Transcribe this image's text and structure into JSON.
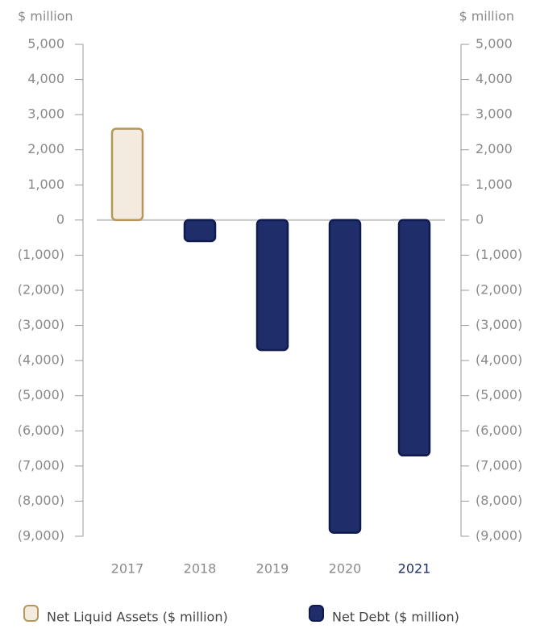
{
  "chart_data": {
    "type": "bar",
    "ylabel": "$ million",
    "y2label": "$ million",
    "categories": [
      "2017",
      "2018",
      "2019",
      "2020",
      "2021"
    ],
    "category_label_colors": [
      "#8a8a8a",
      "#8a8a8a",
      "#8a8a8a",
      "#8a8a8a",
      "#1f2d6b"
    ],
    "series": [
      {
        "name": "Net Liquid Assets ($ million)",
        "color": "#f3ebe0",
        "stroke": "#b8965a",
        "values": [
          2600,
          null,
          null,
          null,
          null
        ]
      },
      {
        "name": "Net Debt ($ million)",
        "color": "#1f2d6b",
        "stroke": "#0f1b4d",
        "values": [
          null,
          -600,
          -3700,
          -8900,
          -6700
        ]
      }
    ],
    "ylim": [
      -9000,
      5000
    ],
    "yticks": [
      {
        "value": 5000,
        "label": "5,000"
      },
      {
        "value": 4000,
        "label": "4,000"
      },
      {
        "value": 3000,
        "label": "3,000"
      },
      {
        "value": 2000,
        "label": "2,000"
      },
      {
        "value": 1000,
        "label": "1,000"
      },
      0,
      {
        "value": -1000,
        "label": "(1,000)"
      },
      {
        "value": -2000,
        "label": "(2,000)"
      },
      {
        "value": -3000,
        "label": "(3,000)"
      },
      {
        "value": -4000,
        "label": "(4,000)"
      },
      {
        "value": -5000,
        "label": "(5,000)"
      },
      {
        "value": -6000,
        "label": "(6,000)"
      },
      {
        "value": -7000,
        "label": "(7,000)"
      },
      {
        "value": -8000,
        "label": "(8,000)"
      },
      {
        "value": -9000,
        "label": "(9,000)"
      }
    ],
    "y2lim": [
      -9000,
      5000
    ],
    "y2ticks": [
      {
        "value": 5000,
        "label": "5,000"
      },
      {
        "value": 4000,
        "label": "4,000"
      },
      {
        "value": 3000,
        "label": "3,000"
      },
      {
        "value": 2000,
        "label": "2,000"
      },
      {
        "value": 1000,
        "label": "1,000"
      },
      0,
      {
        "value": -1000,
        "label": "(1,000)"
      },
      {
        "value": -2000,
        "label": "(2,000)"
      },
      {
        "value": -3000,
        "label": "(3,000)"
      },
      {
        "value": -4000,
        "label": "(4,000)"
      },
      {
        "value": -5000,
        "label": "(5,000)"
      },
      {
        "value": -6000,
        "label": "(6,000)"
      },
      {
        "value": -7000,
        "label": "(7,000)"
      },
      {
        "value": -8000,
        "label": "(8,000)"
      },
      {
        "value": -9000,
        "label": "(9,000)"
      }
    ],
    "legend": "bottom"
  }
}
